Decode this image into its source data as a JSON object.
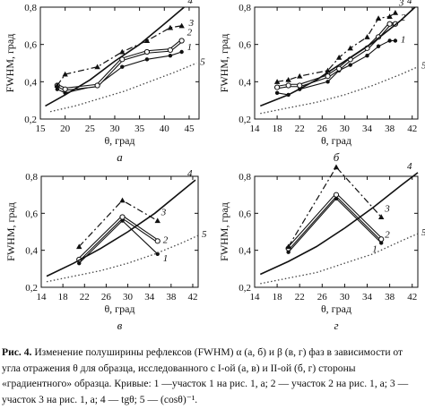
{
  "caption": {
    "fig_label": "Рис. 4.",
    "text": "Изменение полуширины рефлексов (FWHM) α (а, б) и β (в, г) фаз в зависимости от угла отражения θ для образца, исследованного с I-ой (а, в) и II-ой (б, г) стороны «градиентного» образца. Кривые: 1 —участок 1 на рис. 1, а; 2 — участок 2 на рис. 1, а; 3 — участок 3 на рис. 1, а; 4 — tgθ; 5 — (cosθ)⁻¹."
  },
  "colors": {
    "ink": "#111111",
    "dotted": "#444444"
  },
  "chart_data": [
    {
      "panel": "а",
      "type": "line",
      "ylabel": "FWHM, град",
      "xlabel": "θ, град",
      "xlim": [
        15,
        47
      ],
      "ylim": [
        0.2,
        0.8
      ],
      "xticks": [
        15,
        20,
        25,
        30,
        35,
        40,
        45
      ],
      "yticks": [
        0.2,
        0.4,
        0.6,
        0.8
      ],
      "series": [
        {
          "name": "1",
          "style": "solid",
          "marker": "dot",
          "x": [
            18.4,
            20.0,
            26.5,
            31.5,
            36.5,
            41.2,
            43.5
          ],
          "y": [
            0.36,
            0.34,
            0.38,
            0.48,
            0.52,
            0.54,
            0.56
          ]
        },
        {
          "name": "2",
          "style": "double",
          "marker": "circle",
          "x": [
            18.4,
            20.0,
            26.5,
            31.5,
            36.5,
            41.2,
            43.5
          ],
          "y": [
            0.38,
            0.36,
            0.38,
            0.52,
            0.56,
            0.57,
            0.62
          ]
        },
        {
          "name": "3",
          "style": "dashdot",
          "marker": "triangle",
          "x": [
            18.4,
            20.0,
            26.5,
            31.5,
            36.5,
            41.2,
            43.5
          ],
          "y": [
            0.38,
            0.44,
            0.48,
            0.56,
            0.62,
            0.69,
            0.7
          ]
        },
        {
          "name": "4",
          "style": "thick",
          "marker": "none",
          "x": [
            16.0,
            20.0,
            25.0,
            30.0,
            35.0,
            40.0,
            44.0
          ],
          "y": [
            0.27,
            0.33,
            0.41,
            0.51,
            0.6,
            0.71,
            0.8
          ]
        },
        {
          "name": "5",
          "style": "dotted",
          "marker": "none",
          "x": [
            17.0,
            22.0,
            27.0,
            32.0,
            37.0,
            42.0,
            46.5
          ],
          "y": [
            0.24,
            0.27,
            0.31,
            0.35,
            0.4,
            0.45,
            0.5
          ]
        }
      ],
      "curve_labels": [
        "1",
        "2",
        "3",
        "4",
        "5"
      ]
    },
    {
      "panel": "б",
      "type": "line",
      "ylabel": "FWHM, град",
      "xlabel": "θ, град",
      "xlim": [
        14,
        43
      ],
      "ylim": [
        0.2,
        0.8
      ],
      "xticks": [
        14,
        18,
        22,
        26,
        30,
        34,
        38,
        42
      ],
      "yticks": [
        0.2,
        0.4,
        0.6,
        0.8
      ],
      "series": [
        {
          "name": "1",
          "style": "solid",
          "marker": "dot",
          "x": [
            18.0,
            20.0,
            22.0,
            27.0,
            29.0,
            31.0,
            34.0,
            36.0,
            38.0,
            39.0
          ],
          "y": [
            0.34,
            0.33,
            0.36,
            0.4,
            0.46,
            0.49,
            0.54,
            0.59,
            0.62,
            0.62
          ]
        },
        {
          "name": "2",
          "style": "double",
          "marker": "circle",
          "x": [
            18.0,
            20.0,
            22.0,
            27.0,
            29.0,
            31.0,
            34.0,
            36.0,
            38.0,
            39.0
          ],
          "y": [
            0.37,
            0.38,
            0.38,
            0.43,
            0.47,
            0.52,
            0.58,
            0.64,
            0.71,
            0.71
          ]
        },
        {
          "name": "3",
          "style": "dashdot",
          "marker": "triangle",
          "x": [
            18.0,
            20.0,
            22.0,
            27.0,
            29.0,
            31.0,
            34.0,
            36.0,
            38.0,
            39.0
          ],
          "y": [
            0.4,
            0.41,
            0.43,
            0.46,
            0.53,
            0.58,
            0.64,
            0.74,
            0.75,
            0.77
          ]
        },
        {
          "name": "4",
          "style": "thick",
          "marker": "none",
          "x": [
            15.0,
            20.0,
            25.0,
            30.0,
            35.0,
            40.0,
            42.5
          ],
          "y": [
            0.27,
            0.33,
            0.41,
            0.51,
            0.61,
            0.73,
            0.8
          ]
        },
        {
          "name": "5",
          "style": "dotted",
          "marker": "none",
          "x": [
            15.0,
            20.0,
            25.0,
            30.0,
            35.0,
            40.0,
            43.0
          ],
          "y": [
            0.23,
            0.26,
            0.29,
            0.33,
            0.38,
            0.44,
            0.48
          ]
        }
      ],
      "curve_labels": [
        "1",
        "2",
        "3",
        "4",
        "5"
      ]
    },
    {
      "panel": "в",
      "type": "line",
      "ylabel": "FWHM, град",
      "xlabel": "θ, град",
      "xlim": [
        14,
        43
      ],
      "ylim": [
        0.2,
        0.8
      ],
      "xticks": [
        14,
        18,
        22,
        26,
        30,
        34,
        38,
        42
      ],
      "yticks": [
        0.2,
        0.4,
        0.6,
        0.8
      ],
      "series": [
        {
          "name": "1",
          "style": "solid",
          "marker": "dot",
          "x": [
            21.0,
            29.0,
            35.5
          ],
          "y": [
            0.33,
            0.56,
            0.38
          ]
        },
        {
          "name": "2",
          "style": "double",
          "marker": "circle",
          "x": [
            21.0,
            29.0,
            35.5
          ],
          "y": [
            0.35,
            0.58,
            0.45
          ]
        },
        {
          "name": "3",
          "style": "dashdot",
          "marker": "triangle",
          "x": [
            21.0,
            29.0,
            35.5
          ],
          "y": [
            0.42,
            0.67,
            0.56
          ]
        },
        {
          "name": "4",
          "style": "thick",
          "marker": "none",
          "x": [
            15.0,
            20.0,
            25.0,
            30.0,
            35.0,
            40.0,
            42.5
          ],
          "y": [
            0.26,
            0.33,
            0.41,
            0.5,
            0.6,
            0.72,
            0.78
          ]
        },
        {
          "name": "5",
          "style": "dotted",
          "marker": "none",
          "x": [
            15.0,
            20.0,
            25.0,
            30.0,
            35.0,
            40.0,
            43.0
          ],
          "y": [
            0.23,
            0.26,
            0.29,
            0.33,
            0.38,
            0.44,
            0.48
          ]
        }
      ],
      "curve_labels": [
        "1",
        "2",
        "3",
        "4",
        "5"
      ]
    },
    {
      "panel": "г",
      "type": "line",
      "ylabel": "FWHM, град",
      "xlabel": "θ, град",
      "xlim": [
        14,
        43
      ],
      "ylim": [
        0.2,
        0.8
      ],
      "xticks": [
        14,
        18,
        22,
        26,
        30,
        34,
        38,
        42
      ],
      "yticks": [
        0.2,
        0.4,
        0.6,
        0.8
      ],
      "series": [
        {
          "name": "1",
          "style": "solid",
          "marker": "dot",
          "x": [
            20.0,
            28.5,
            36.5
          ],
          "y": [
            0.39,
            0.68,
            0.44
          ]
        },
        {
          "name": "2",
          "style": "double",
          "marker": "circle",
          "x": [
            20.0,
            28.5,
            36.5
          ],
          "y": [
            0.41,
            0.7,
            0.46
          ]
        },
        {
          "name": "3",
          "style": "dashdot",
          "marker": "triangle",
          "x": [
            20.0,
            28.5,
            36.5
          ],
          "y": [
            0.42,
            0.85,
            0.58
          ]
        },
        {
          "name": "4",
          "style": "thick",
          "marker": "none",
          "x": [
            15.0,
            20.0,
            25.0,
            30.0,
            35.0,
            40.0,
            43.0
          ],
          "y": [
            0.27,
            0.34,
            0.42,
            0.52,
            0.63,
            0.75,
            0.82
          ]
        },
        {
          "name": "5",
          "style": "dotted",
          "marker": "none",
          "x": [
            15.0,
            20.0,
            25.0,
            30.0,
            35.0,
            40.0,
            43.0
          ],
          "y": [
            0.22,
            0.25,
            0.28,
            0.33,
            0.38,
            0.45,
            0.49
          ]
        }
      ],
      "curve_labels": [
        "1",
        "2",
        "3",
        "4",
        "5"
      ]
    }
  ]
}
